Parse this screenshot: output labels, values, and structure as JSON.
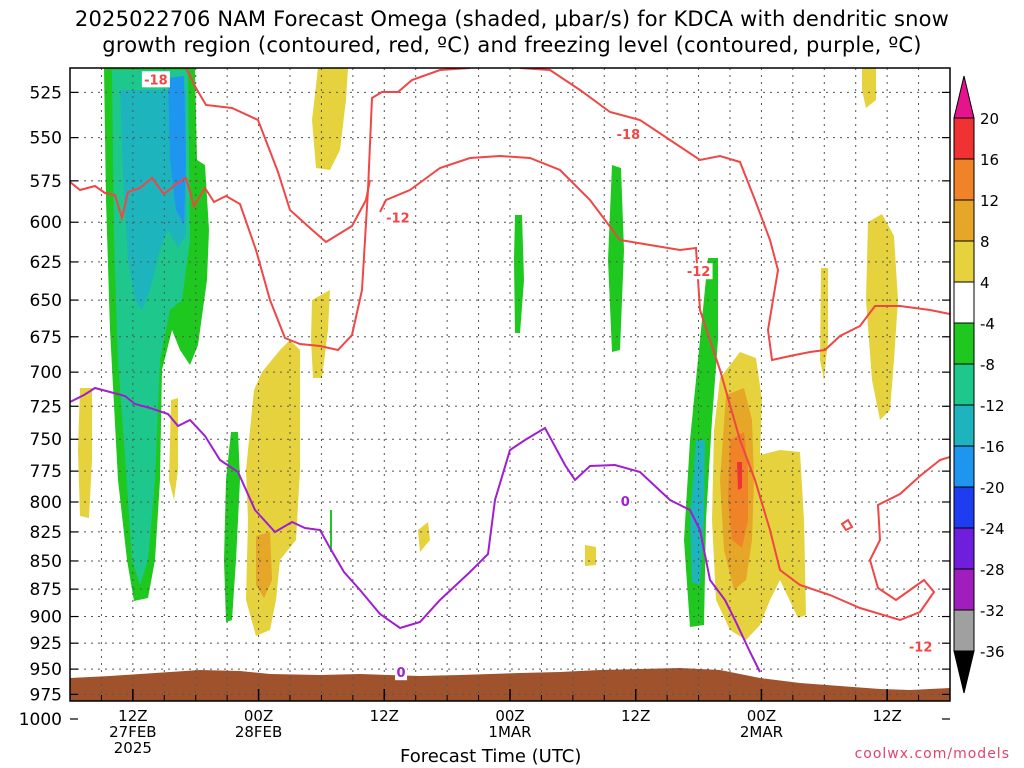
{
  "title": {
    "line1": "2025022706 NAM Forecast Omega (shaded, μbar/s) for KDCA with dendritic snow",
    "line2": "growth region (contoured, red, ºC) and freezing level (contoured, purple, ºC)"
  },
  "credit": "coolwx.com/models",
  "chart_data": {
    "type": "heatmap",
    "xlabel": "Forecast Time (UTC)",
    "ylabel": "",
    "y_scale": "log-pressure (inverted)",
    "ylim": [
      1000,
      512
    ],
    "xlim_hours": [
      0,
      84
    ],
    "y_ticks": [
      525,
      550,
      575,
      600,
      625,
      650,
      675,
      700,
      725,
      750,
      775,
      800,
      825,
      850,
      875,
      900,
      925,
      950,
      975,
      1000
    ],
    "x_ticks": [
      {
        "hour": 6,
        "label1": "12Z",
        "label2": "27FEB",
        "label3": "2025"
      },
      {
        "hour": 18,
        "label1": "00Z",
        "label2": "28FEB",
        "label3": ""
      },
      {
        "hour": 30,
        "label1": "12Z",
        "label2": "",
        "label3": ""
      },
      {
        "hour": 42,
        "label1": "00Z",
        "label2": "1MAR",
        "label3": ""
      },
      {
        "hour": 54,
        "label1": "12Z",
        "label2": "",
        "label3": ""
      },
      {
        "hour": 66,
        "label1": "00Z",
        "label2": "2MAR",
        "label3": ""
      },
      {
        "hour": 78,
        "label1": "12Z",
        "label2": "",
        "label3": ""
      }
    ],
    "grid": true,
    "colorbar": {
      "position": "right",
      "labels": [
        "20",
        "16",
        "12",
        "8",
        "4",
        "-4",
        "-8",
        "-12",
        "-16",
        "-20",
        "-24",
        "-28",
        "-32",
        "-36"
      ],
      "colors": [
        "#f03232",
        "#f08228",
        "#e6a628",
        "#e6d23c",
        "#ffffff",
        "#1ec81e",
        "#1ec88c",
        "#1eb4be",
        "#1e96f0",
        "#1e3cf0",
        "#6e1edc",
        "#a01ebe",
        "#a0a0a0"
      ],
      "top_arrow_color": "#e6148c",
      "bottom_arrow_color": "#000000"
    },
    "contours": [
      {
        "name": "-18",
        "color": "#f04646",
        "labels": [
          {
            "text": "-18",
            "hour": 8.2,
            "p": 518
          },
          {
            "text": "-18",
            "hour": 53.3,
            "p": 548
          }
        ]
      },
      {
        "name": "-12",
        "color": "#f04646",
        "labels": [
          {
            "text": "-12",
            "hour": 31.3,
            "p": 597
          },
          {
            "text": "-12",
            "hour": 60.0,
            "p": 631
          },
          {
            "text": "-12",
            "hour": 81.2,
            "p": 928
          }
        ]
      },
      {
        "name": "0",
        "color": "#a01ed2",
        "labels": [
          {
            "text": "0",
            "hour": 31.6,
            "p": 953
          },
          {
            "text": "0",
            "hour": 53.0,
            "p": 799
          }
        ]
      }
    ],
    "surface_color": "#a0522d"
  }
}
